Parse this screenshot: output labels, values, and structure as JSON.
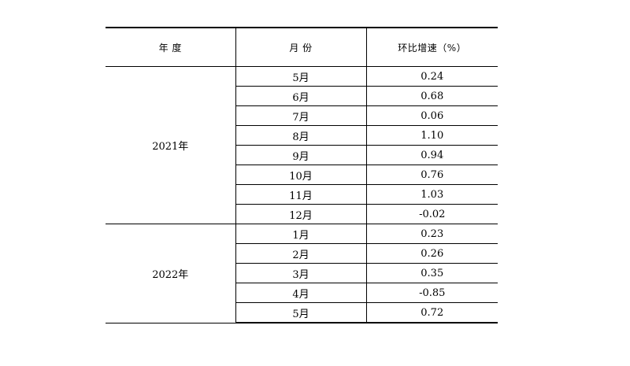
{
  "table": {
    "headers": [
      "年 度",
      "月 份",
      "环比增速（%）"
    ],
    "groups": [
      {
        "year": "2021年",
        "rows": [
          {
            "month": "5月",
            "rate": "0.24"
          },
          {
            "month": "6月",
            "rate": "0.68"
          },
          {
            "month": "7月",
            "rate": "0.06"
          },
          {
            "month": "8月",
            "rate": "1.10"
          },
          {
            "month": "9月",
            "rate": "0.94"
          },
          {
            "month": "10月",
            "rate": "0.76"
          },
          {
            "month": "11月",
            "rate": "1.03"
          },
          {
            "month": "12月",
            "rate": "-0.02"
          }
        ]
      },
      {
        "year": "2022年",
        "rows": [
          {
            "month": "1月",
            "rate": "0.23"
          },
          {
            "month": "2月",
            "rate": "0.26"
          },
          {
            "month": "3月",
            "rate": "0.35"
          },
          {
            "month": "4月",
            "rate": "-0.85"
          },
          {
            "month": "5月",
            "rate": "0.72"
          }
        ]
      }
    ]
  }
}
